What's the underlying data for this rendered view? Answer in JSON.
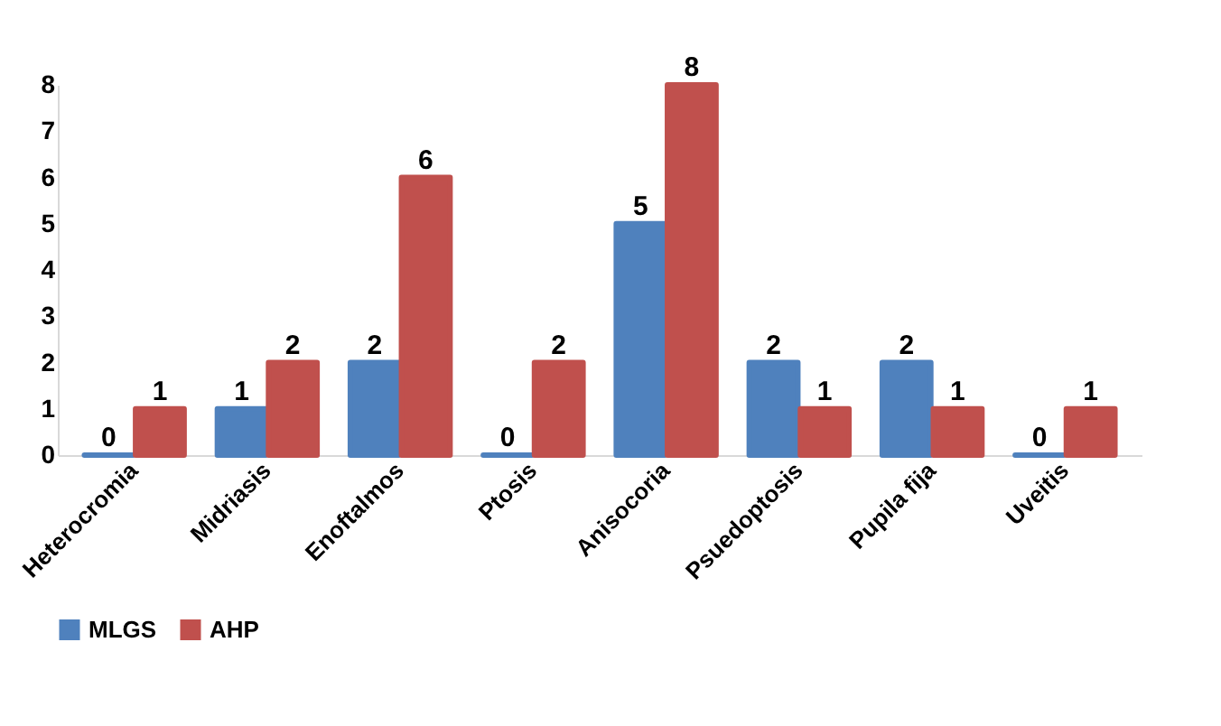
{
  "chart_data": {
    "type": "bar",
    "categories": [
      "Heterocromia",
      "Midriasis",
      "Enoftalmos",
      "Ptosis",
      "Anisocoria",
      "Psuedoptosis",
      "Pupila fija",
      "Uveitis"
    ],
    "series": [
      {
        "name": "MLGS",
        "color": "#4f81bd",
        "values": [
          0,
          1,
          2,
          0,
          5,
          2,
          2,
          0
        ]
      },
      {
        "name": "AHP",
        "color": "#c0504d",
        "values": [
          1,
          2,
          6,
          2,
          8,
          1,
          1,
          1
        ]
      }
    ],
    "ylim": [
      0,
      8
    ],
    "yticks": [
      0,
      1,
      2,
      3,
      4,
      5,
      6,
      7,
      8
    ],
    "grid": false,
    "legend": "bottom",
    "data_labels": true
  }
}
